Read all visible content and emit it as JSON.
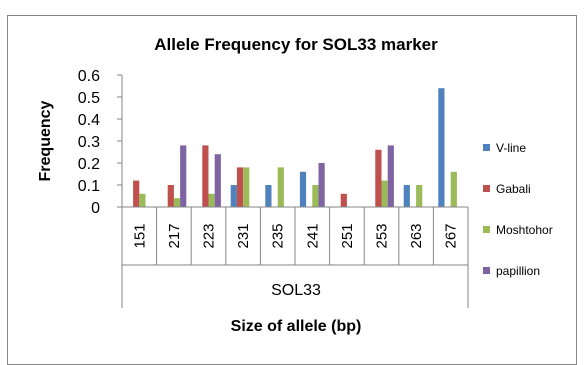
{
  "chart_data": {
    "type": "bar",
    "title": "Allele Frequency for SOL33 marker",
    "ylabel": "Frequency",
    "xlabel": "Size of allele (bp)",
    "group_label": "SOL33",
    "categories": [
      "151",
      "217",
      "223",
      "231",
      "235",
      "241",
      "251",
      "253",
      "263",
      "267"
    ],
    "ylim": [
      0,
      0.6
    ],
    "yticks": [
      "0",
      "0.1",
      "0.2",
      "0.3",
      "0.4",
      "0.5",
      "0.6"
    ],
    "legend_position": "right",
    "grid": false,
    "series": [
      {
        "name": "V-line",
        "color": "#4F81BD",
        "values": [
          0,
          0,
          0,
          0.1,
          0.1,
          0.16,
          0,
          0,
          0.1,
          0.54
        ]
      },
      {
        "name": "Gabali",
        "color": "#C0504D",
        "values": [
          0.12,
          0.1,
          0.28,
          0.18,
          0,
          0,
          0.06,
          0.26,
          0,
          0
        ]
      },
      {
        "name": "Moshtohor",
        "color": "#9BBB59",
        "values": [
          0.06,
          0.04,
          0.06,
          0.18,
          0.18,
          0.1,
          0,
          0.12,
          0.1,
          0.16
        ]
      },
      {
        "name": "papillion",
        "color": "#8064A2",
        "values": [
          0,
          0.28,
          0.24,
          0,
          0,
          0.2,
          0,
          0.28,
          0,
          0
        ]
      }
    ]
  }
}
